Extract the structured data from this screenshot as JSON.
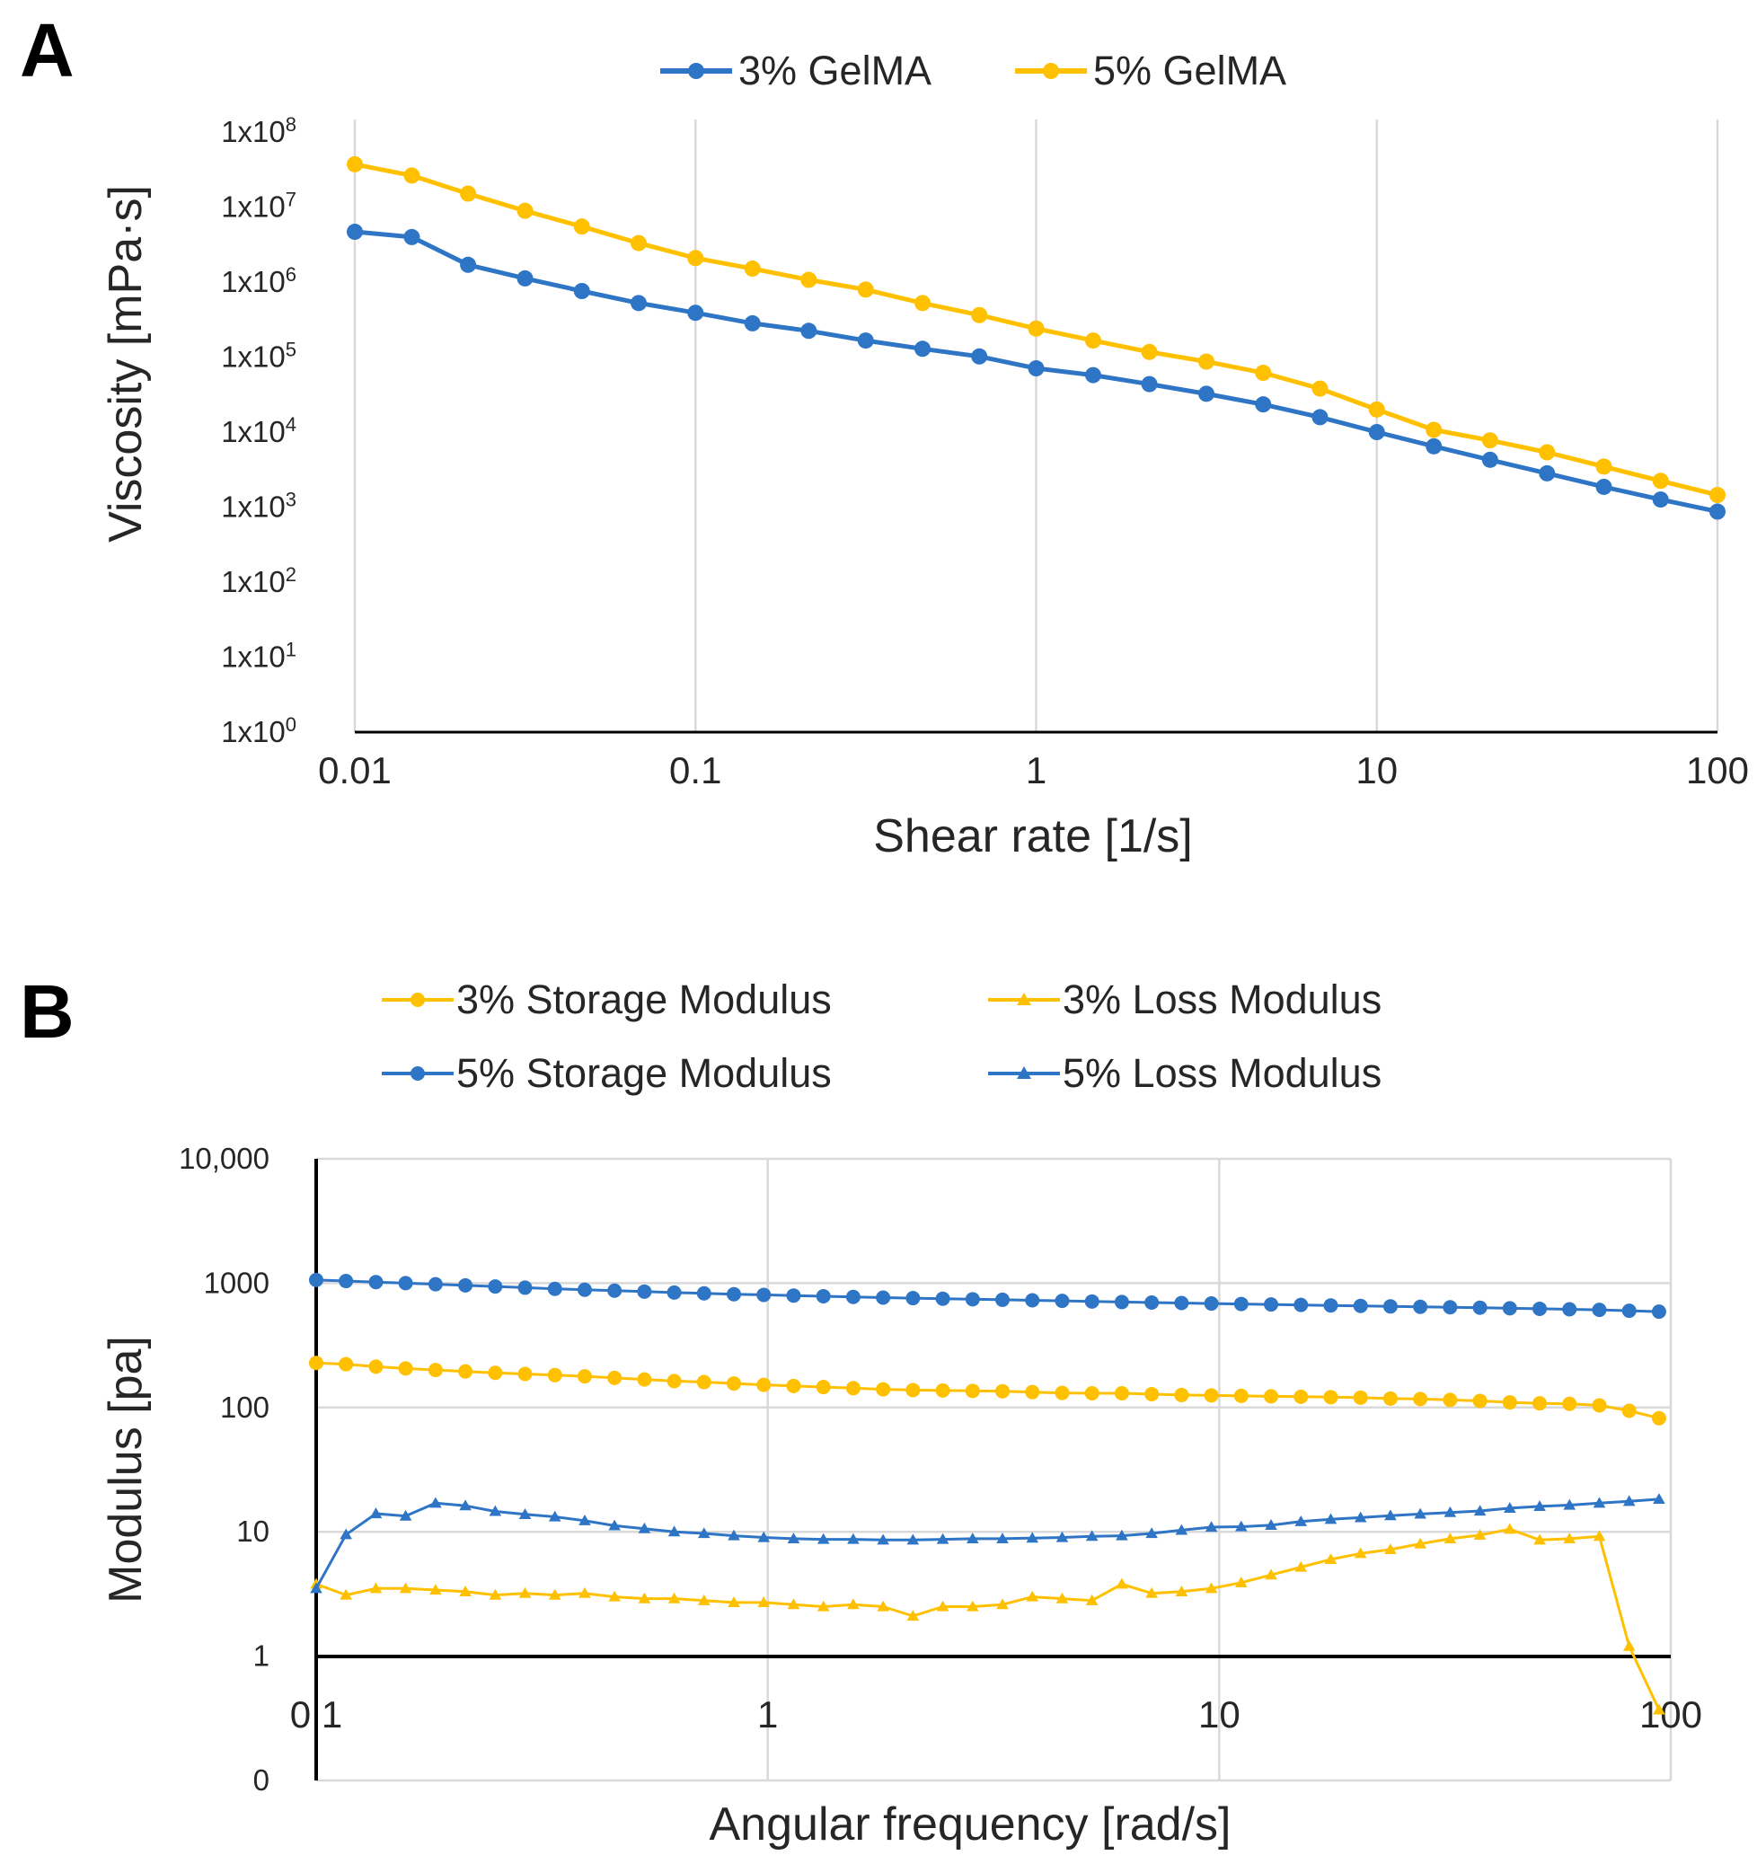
{
  "figure": {
    "panel_a_label": "A",
    "panel_b_label": "B"
  },
  "chart_data": [
    {
      "id": "A",
      "type": "line",
      "x_scale": "log",
      "y_scale": "log",
      "xlabel": "Shear rate [1/s]",
      "ylabel": "Viscosity [mPa·s]",
      "xlim": [
        0.01,
        100
      ],
      "ylim": [
        1,
        100000000
      ],
      "grid": "vertical",
      "legend_position": "top",
      "x_ticks": [
        {
          "value": 0.01,
          "label": "0.01"
        },
        {
          "value": 0.1,
          "label": "0.1"
        },
        {
          "value": 1,
          "label": "1"
        },
        {
          "value": 10,
          "label": "10"
        },
        {
          "value": 100,
          "label": "100"
        }
      ],
      "y_ticks": [
        {
          "value": 1,
          "mantissa": "1x10",
          "exp": "0"
        },
        {
          "value": 10,
          "mantissa": "1x10",
          "exp": "1"
        },
        {
          "value": 100,
          "mantissa": "1x10",
          "exp": "2"
        },
        {
          "value": 1000,
          "mantissa": "1x10",
          "exp": "3"
        },
        {
          "value": 10000,
          "mantissa": "1x10",
          "exp": "4"
        },
        {
          "value": 100000,
          "mantissa": "1x10",
          "exp": "5"
        },
        {
          "value": 1000000,
          "mantissa": "1x10",
          "exp": "6"
        },
        {
          "value": 10000000,
          "mantissa": "1x10",
          "exp": "7"
        },
        {
          "value": 100000000,
          "mantissa": "1x10",
          "exp": "8"
        }
      ],
      "x": [
        0.01,
        0.0147,
        0.0215,
        0.0316,
        0.0464,
        0.0681,
        0.1,
        0.147,
        0.215,
        0.316,
        0.464,
        0.681,
        1,
        1.47,
        2.15,
        3.16,
        4.64,
        6.81,
        10,
        14.7,
        21.5,
        31.6,
        46.4,
        68.1,
        100
      ],
      "series": [
        {
          "name": "3% GelMA",
          "color": "#2e75c6",
          "marker": "circle",
          "values": [
            4680000,
            3980000,
            1700000,
            1120000,
            759000,
            525000,
            389000,
            282000,
            224000,
            166000,
            129000,
            102000,
            70800,
            57500,
            43600,
            32400,
            23400,
            15800,
            10000,
            6460,
            4270,
            2820,
            1860,
            1260,
            871
          ]
        },
        {
          "name": "5% GelMA",
          "color": "#ffc000",
          "marker": "circle",
          "values": [
            37200000,
            26300000,
            15100000,
            8910000,
            5500000,
            3310000,
            2090000,
            1510000,
            1070000,
            794000,
            525000,
            363000,
            240000,
            166000,
            117000,
            87100,
            61700,
            38000,
            20000,
            10700,
            7760,
            5370,
            3470,
            2240,
            1450
          ]
        }
      ]
    },
    {
      "id": "B",
      "type": "line",
      "x_scale": "log",
      "y_scale": "log",
      "xlabel": "Angular frequency [rad/s]",
      "ylabel": "Modulus [pa]",
      "xlim": [
        0.1,
        100
      ],
      "ylim": [
        0.1,
        10000
      ],
      "grid": "both",
      "legend_position": "top",
      "x_ticks": [
        {
          "value": 0.1,
          "label": "0.1"
        },
        {
          "value": 1,
          "label": "1"
        },
        {
          "value": 10,
          "label": "10"
        },
        {
          "value": 100,
          "label": "100"
        }
      ],
      "y_ticks": [
        {
          "value": 0.1,
          "label": "0"
        },
        {
          "value": 1,
          "label": "1"
        },
        {
          "value": 10,
          "label": "10"
        },
        {
          "value": 100,
          "label": "100"
        },
        {
          "value": 1000,
          "label": "1000"
        },
        {
          "value": 10000,
          "label": "10,000"
        }
      ],
      "x": [
        0.1,
        0.1164,
        0.1356,
        0.1578,
        0.1838,
        0.214,
        0.2492,
        0.2901,
        0.3378,
        0.3933,
        0.4579,
        0.5332,
        0.6208,
        0.7228,
        0.8416,
        0.98,
        1.141,
        1.3285,
        1.5469,
        1.8012,
        2.0972,
        2.442,
        2.8434,
        3.3108,
        3.855,
        4.4887,
        5.2265,
        6.0857,
        7.0861,
        8.2509,
        9.6072,
        11.186,
        13.025,
        15.166,
        17.659,
        20.562,
        23.942,
        27.878,
        32.46,
        37.796,
        44.009,
        51.244,
        59.667,
        69.475,
        80.896,
        94.193
      ],
      "series": [
        {
          "name": "3% Storage Modulus",
          "color": "#ffc000",
          "marker": "circle",
          "values": [
            228,
            223,
            213,
            206,
            200,
            195,
            190,
            186,
            182,
            178,
            173,
            168,
            163,
            160,
            156,
            152,
            149,
            146,
            143,
            140,
            138,
            137,
            136,
            135,
            133,
            131,
            130,
            130,
            128,
            126,
            125,
            124,
            123,
            122,
            121,
            120,
            118,
            117,
            115,
            113,
            110,
            108,
            107,
            104,
            94,
            82
          ]
        },
        {
          "name": "3% Loss Modulus",
          "color": "#ffc000",
          "marker": "triangle",
          "values": [
            3.8,
            3.1,
            3.5,
            3.5,
            3.4,
            3.3,
            3.1,
            3.2,
            3.1,
            3.2,
            3.0,
            2.9,
            2.9,
            2.8,
            2.7,
            2.7,
            2.6,
            2.5,
            2.6,
            2.5,
            2.1,
            2.5,
            2.5,
            2.6,
            3.0,
            2.9,
            2.8,
            3.8,
            3.2,
            3.3,
            3.5,
            3.9,
            4.5,
            5.2,
            6.0,
            6.7,
            7.2,
            8.0,
            8.8,
            9.4,
            10.5,
            8.6,
            8.8,
            9.2,
            1.2,
            0.37
          ]
        },
        {
          "name": "5% Storage Modulus",
          "color": "#2e75c6",
          "marker": "circle",
          "values": [
            1060,
            1040,
            1020,
            1000,
            980,
            960,
            940,
            920,
            900,
            885,
            870,
            855,
            840,
            828,
            815,
            805,
            795,
            785,
            775,
            765,
            758,
            750,
            742,
            735,
            728,
            720,
            712,
            705,
            698,
            692,
            686,
            680,
            674,
            668,
            662,
            656,
            650,
            645,
            640,
            635,
            628,
            622,
            616,
            610,
            600,
            590
          ]
        },
        {
          "name": "5% Loss Modulus",
          "color": "#2e75c6",
          "marker": "triangle",
          "values": [
            3.5,
            9.5,
            14.0,
            13.4,
            17.0,
            16.2,
            14.6,
            13.8,
            13.2,
            12.3,
            11.2,
            10.6,
            10.0,
            9.7,
            9.3,
            9.0,
            8.8,
            8.7,
            8.7,
            8.6,
            8.6,
            8.7,
            8.8,
            8.8,
            8.9,
            9.0,
            9.2,
            9.3,
            9.7,
            10.3,
            10.9,
            11.0,
            11.3,
            12.1,
            12.6,
            13.0,
            13.5,
            13.9,
            14.3,
            14.7,
            15.5,
            16.0,
            16.4,
            17.0,
            17.6,
            18.3
          ]
        }
      ]
    }
  ]
}
